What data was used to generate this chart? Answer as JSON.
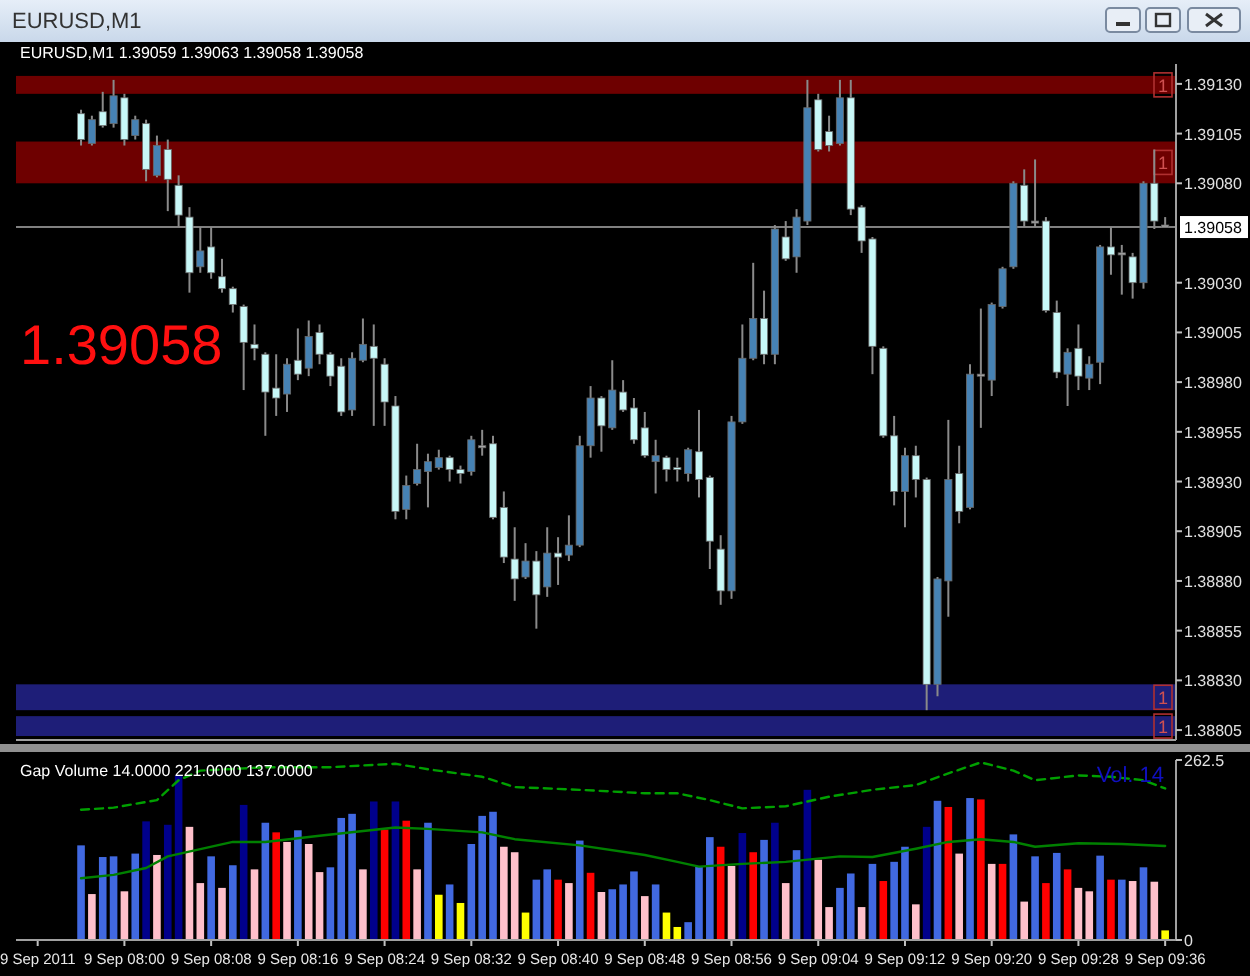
{
  "chart_data": [
    {
      "type": "candlestick",
      "title": "EURUSD,M1",
      "subtitle": "EURUSD,M1  1.39059 1.39063 1.39058 1.39058",
      "annotations": [
        "1.39058"
      ],
      "x": [
        "2011-09-09T07:56",
        "2011-09-09T07:57",
        "2011-09-09T07:58",
        "2011-09-09T07:59",
        "2011-09-09T08:00",
        "2011-09-09T08:01",
        "2011-09-09T08:02",
        "2011-09-09T08:03",
        "2011-09-09T08:04",
        "2011-09-09T08:05",
        "2011-09-09T08:06",
        "2011-09-09T08:07",
        "2011-09-09T08:08",
        "2011-09-09T08:09",
        "2011-09-09T08:10",
        "2011-09-09T08:11",
        "2011-09-09T08:12",
        "2011-09-09T08:13",
        "2011-09-09T08:14",
        "2011-09-09T08:15",
        "2011-09-09T08:16",
        "2011-09-09T08:17",
        "2011-09-09T08:18",
        "2011-09-09T08:19",
        "2011-09-09T08:20",
        "2011-09-09T08:21",
        "2011-09-09T08:22",
        "2011-09-09T08:23",
        "2011-09-09T08:24",
        "2011-09-09T08:25",
        "2011-09-09T08:26",
        "2011-09-09T08:27",
        "2011-09-09T08:28",
        "2011-09-09T08:29",
        "2011-09-09T08:30",
        "2011-09-09T08:31",
        "2011-09-09T08:32",
        "2011-09-09T08:33",
        "2011-09-09T08:34",
        "2011-09-09T08:35",
        "2011-09-09T08:36",
        "2011-09-09T08:37",
        "2011-09-09T08:38",
        "2011-09-09T08:39",
        "2011-09-09T08:40",
        "2011-09-09T08:41",
        "2011-09-09T08:42",
        "2011-09-09T08:43",
        "2011-09-09T08:44",
        "2011-09-09T08:45",
        "2011-09-09T08:46",
        "2011-09-09T08:47",
        "2011-09-09T08:48",
        "2011-09-09T08:49",
        "2011-09-09T08:50",
        "2011-09-09T08:51",
        "2011-09-09T08:52",
        "2011-09-09T08:53",
        "2011-09-09T08:54",
        "2011-09-09T08:55",
        "2011-09-09T08:56",
        "2011-09-09T08:57",
        "2011-09-09T08:58",
        "2011-09-09T08:59",
        "2011-09-09T09:00",
        "2011-09-09T09:01",
        "2011-09-09T09:02",
        "2011-09-09T09:03",
        "2011-09-09T09:04",
        "2011-09-09T09:05",
        "2011-09-09T09:06",
        "2011-09-09T09:07",
        "2011-09-09T09:08",
        "2011-09-09T09:09",
        "2011-09-09T09:10",
        "2011-09-09T09:11",
        "2011-09-09T09:12",
        "2011-09-09T09:13",
        "2011-09-09T09:14",
        "2011-09-09T09:15",
        "2011-09-09T09:16",
        "2011-09-09T09:17",
        "2011-09-09T09:18",
        "2011-09-09T09:19",
        "2011-09-09T09:20",
        "2011-09-09T09:21",
        "2011-09-09T09:22",
        "2011-09-09T09:23",
        "2011-09-09T09:24",
        "2011-09-09T09:25",
        "2011-09-09T09:26",
        "2011-09-09T09:27",
        "2011-09-09T09:28",
        "2011-09-09T09:29",
        "2011-09-09T09:30",
        "2011-09-09T09:31",
        "2011-09-09T09:32",
        "2011-09-09T09:33",
        "2011-09-09T09:34",
        "2011-09-09T09:35",
        "2011-09-09T09:36"
      ],
      "ohlc": [
        [
          1.39115,
          1.39117,
          1.39099,
          1.39102
        ],
        [
          1.391,
          1.39114,
          1.39099,
          1.39112
        ],
        [
          1.39116,
          1.39126,
          1.39108,
          1.39109
        ],
        [
          1.3911,
          1.39132,
          1.39108,
          1.39124
        ],
        [
          1.39123,
          1.39125,
          1.39099,
          1.39102
        ],
        [
          1.39104,
          1.39114,
          1.39102,
          1.39112
        ],
        [
          1.3911,
          1.39112,
          1.39081,
          1.39087
        ],
        [
          1.39084,
          1.39104,
          1.39083,
          1.39099
        ],
        [
          1.39097,
          1.39102,
          1.39066,
          1.39082
        ],
        [
          1.39079,
          1.39084,
          1.39058,
          1.39064
        ],
        [
          1.39063,
          1.39068,
          1.39025,
          1.39035
        ],
        [
          1.39038,
          1.39058,
          1.39035,
          1.39046
        ],
        [
          1.39048,
          1.39058,
          1.39032,
          1.39035
        ],
        [
          1.39033,
          1.39042,
          1.39025,
          1.39027
        ],
        [
          1.39027,
          1.39028,
          1.39015,
          1.39019
        ],
        [
          1.39018,
          1.39019,
          1.38976,
          1.39
        ],
        [
          1.38999,
          1.39009,
          1.38991,
          1.38997
        ],
        [
          1.38994,
          1.38995,
          1.38953,
          1.38975
        ],
        [
          1.38977,
          1.38994,
          1.38963,
          1.38972
        ],
        [
          1.38974,
          1.38992,
          1.38965,
          1.38989
        ],
        [
          1.38991,
          1.39007,
          1.38981,
          1.38984
        ],
        [
          1.38987,
          1.39011,
          1.38983,
          1.39003
        ],
        [
          1.39005,
          1.39009,
          1.38989,
          1.38994
        ],
        [
          1.38994,
          1.38995,
          1.38978,
          1.38983
        ],
        [
          1.38988,
          1.38992,
          1.38963,
          1.38965
        ],
        [
          1.38966,
          1.38995,
          1.38963,
          1.38992
        ],
        [
          1.38991,
          1.39012,
          1.3899,
          1.38999
        ],
        [
          1.38998,
          1.39009,
          1.38958,
          1.38992
        ],
        [
          1.38989,
          1.38992,
          1.38958,
          1.3897
        ],
        [
          1.38968,
          1.38973,
          1.38911,
          1.38915
        ],
        [
          1.38916,
          1.38933,
          1.38911,
          1.38928
        ],
        [
          1.38929,
          1.38949,
          1.38928,
          1.38936
        ],
        [
          1.38935,
          1.38944,
          1.38917,
          1.3894
        ],
        [
          1.38937,
          1.38946,
          1.38936,
          1.38942
        ],
        [
          1.38942,
          1.38943,
          1.3893,
          1.38936
        ],
        [
          1.38936,
          1.38938,
          1.38929,
          1.38934
        ],
        [
          1.38935,
          1.38953,
          1.38933,
          1.38951
        ],
        [
          1.38948,
          1.38956,
          1.38943,
          1.38948
        ],
        [
          1.38949,
          1.38953,
          1.38911,
          1.38912
        ],
        [
          1.38917,
          1.38925,
          1.38889,
          1.38892
        ],
        [
          1.38891,
          1.38907,
          1.3887,
          1.38881
        ],
        [
          1.38882,
          1.38899,
          1.38881,
          1.3889
        ],
        [
          1.3889,
          1.38895,
          1.38856,
          1.38873
        ],
        [
          1.38877,
          1.38907,
          1.38872,
          1.38894
        ],
        [
          1.38894,
          1.38902,
          1.38878,
          1.38892
        ],
        [
          1.38893,
          1.38913,
          1.3889,
          1.38898
        ],
        [
          1.38898,
          1.38953,
          1.38897,
          1.38948
        ],
        [
          1.38948,
          1.38978,
          1.38942,
          1.38972
        ],
        [
          1.38972,
          1.38973,
          1.38945,
          1.38958
        ],
        [
          1.38957,
          1.38991,
          1.38956,
          1.38976
        ],
        [
          1.38975,
          1.38981,
          1.38965,
          1.38966
        ],
        [
          1.38967,
          1.38972,
          1.38949,
          1.38951
        ],
        [
          1.38957,
          1.38965,
          1.38942,
          1.38943
        ],
        [
          1.3894,
          1.38951,
          1.38924,
          1.38943
        ],
        [
          1.38942,
          1.38943,
          1.3893,
          1.38936
        ],
        [
          1.38937,
          1.38942,
          1.3893,
          1.38936
        ],
        [
          1.38934,
          1.38947,
          1.3893,
          1.38946
        ],
        [
          1.38945,
          1.38966,
          1.38922,
          1.38931
        ],
        [
          1.38932,
          1.38933,
          1.38886,
          1.389
        ],
        [
          1.38896,
          1.38903,
          1.38868,
          1.38875
        ],
        [
          1.38875,
          1.38963,
          1.38871,
          1.3896
        ],
        [
          1.3896,
          1.39009,
          1.38959,
          1.38992
        ],
        [
          1.38992,
          1.3904,
          1.38991,
          1.39012
        ],
        [
          1.39012,
          1.39026,
          1.38989,
          1.38994
        ],
        [
          1.38994,
          1.39059,
          1.38989,
          1.39057
        ],
        [
          1.39053,
          1.39061,
          1.39041,
          1.39042
        ],
        [
          1.39043,
          1.39067,
          1.39035,
          1.39063
        ],
        [
          1.39061,
          1.39132,
          1.39059,
          1.39118
        ],
        [
          1.39122,
          1.39125,
          1.39096,
          1.39097
        ],
        [
          1.39106,
          1.39114,
          1.39096,
          1.39099
        ],
        [
          1.391,
          1.39132,
          1.39099,
          1.39123
        ],
        [
          1.39123,
          1.39132,
          1.39064,
          1.39067
        ],
        [
          1.39068,
          1.39069,
          1.39045,
          1.39051
        ],
        [
          1.39052,
          1.39053,
          1.38984,
          1.38998
        ],
        [
          1.38997,
          1.38998,
          1.38952,
          1.38953
        ],
        [
          1.38953,
          1.38963,
          1.38918,
          1.38925
        ],
        [
          1.38925,
          1.38947,
          1.38907,
          1.38943
        ],
        [
          1.38943,
          1.38948,
          1.38922,
          1.38931
        ],
        [
          1.38931,
          1.38932,
          1.38815,
          1.38828
        ],
        [
          1.38828,
          1.38882,
          1.38822,
          1.38881
        ],
        [
          1.3888,
          1.38961,
          1.38862,
          1.38931
        ],
        [
          1.38934,
          1.38948,
          1.38909,
          1.38915
        ],
        [
          1.38917,
          1.38989,
          1.38916,
          1.38984
        ],
        [
          1.38983,
          1.39017,
          1.38957,
          1.38984
        ],
        [
          1.38981,
          1.3902,
          1.38973,
          1.39019
        ],
        [
          1.39018,
          1.39038,
          1.39017,
          1.39037
        ],
        [
          1.39038,
          1.39081,
          1.39037,
          1.3908
        ],
        [
          1.39079,
          1.39087,
          1.39058,
          1.39061
        ],
        [
          1.3906,
          1.39092,
          1.39058,
          1.39061
        ],
        [
          1.39061,
          1.39063,
          1.39015,
          1.39016
        ],
        [
          1.39015,
          1.39021,
          1.38982,
          1.38985
        ],
        [
          1.38984,
          1.38997,
          1.38968,
          1.38995
        ],
        [
          1.38997,
          1.39009,
          1.38976,
          1.38983
        ],
        [
          1.38982,
          1.38993,
          1.38976,
          1.38989
        ],
        [
          1.3899,
          1.39049,
          1.38979,
          1.39048
        ],
        [
          1.39048,
          1.39058,
          1.39034,
          1.39044
        ],
        [
          1.39045,
          1.39049,
          1.39024,
          1.39045
        ],
        [
          1.39043,
          1.39045,
          1.39022,
          1.3903
        ],
        [
          1.3903,
          1.39081,
          1.39027,
          1.3908
        ],
        [
          1.3908,
          1.39097,
          1.39057,
          1.39061
        ],
        [
          1.39059,
          1.39063,
          1.39058,
          1.39058
        ]
      ],
      "colors": [
        "#c8f8f8",
        "#4682b4",
        "#c8f8f8",
        "#4682b4",
        "#c8f8f8",
        "#4682b4",
        "#c8f8f8",
        "#4682b4",
        "#c8f8f8",
        "#c8f8f8",
        "#c8f8f8",
        "#4682b4",
        "#c8f8f8",
        "#c8f8f8",
        "#c8f8f8",
        "#c8f8f8",
        "#c8f8f8",
        "#c8f8f8",
        "#c8f8f8",
        "#4682b4",
        "#c8f8f8",
        "#4682b4",
        "#c8f8f8",
        "#c8f8f8",
        "#c8f8f8",
        "#4682b4",
        "#4682b4",
        "#c8f8f8",
        "#c8f8f8",
        "#c8f8f8",
        "#4682b4",
        "#4682b4",
        "#4682b4",
        "#4682b4",
        "#c8f8f8",
        "#c8f8f8",
        "#4682b4",
        "#b0b0b0",
        "#c8f8f8",
        "#c8f8f8",
        "#c8f8f8",
        "#4682b4",
        "#c8f8f8",
        "#4682b4",
        "#c8f8f8",
        "#4682b4",
        "#4682b4",
        "#4682b4",
        "#c8f8f8",
        "#4682b4",
        "#c8f8f8",
        "#c8f8f8",
        "#c8f8f8",
        "#4682b4",
        "#c8f8f8",
        "#c8f8f8",
        "#4682b4",
        "#c8f8f8",
        "#c8f8f8",
        "#c8f8f8",
        "#4682b4",
        "#4682b4",
        "#4682b4",
        "#c8f8f8",
        "#4682b4",
        "#c8f8f8",
        "#4682b4",
        "#4682b4",
        "#c8f8f8",
        "#c8f8f8",
        "#4682b4",
        "#c8f8f8",
        "#c8f8f8",
        "#c8f8f8",
        "#c8f8f8",
        "#c8f8f8",
        "#4682b4",
        "#c8f8f8",
        "#c8f8f8",
        "#4682b4",
        "#4682b4",
        "#c8f8f8",
        "#4682b4",
        "#b0b0b0",
        "#4682b4",
        "#4682b4",
        "#4682b4",
        "#c8f8f8",
        "#b0b0b0",
        "#c8f8f8",
        "#c8f8f8",
        "#4682b4",
        "#c8f8f8",
        "#4682b4",
        "#4682b4",
        "#c8f8f8",
        "#b0b0b0",
        "#c8f8f8",
        "#4682b4",
        "#c8f8f8",
        "#b0b0b0"
      ],
      "xlim": [
        "2011-09-09T07:50",
        "2011-09-09T09:37"
      ],
      "ylim": [
        1.388,
        1.3914
      ],
      "yticks": [
        {
          "value": 1.3913,
          "label": "1.39130"
        },
        1.39105,
        {
          "value": 1.3908,
          "label": "1.39080"
        },
        {
          "value": 1.3903,
          "label": "1.39030"
        },
        1.39005,
        {
          "value": 1.3898,
          "label": "1.38980"
        },
        1.38955,
        {
          "value": 1.3893,
          "label": "1.38930"
        },
        1.38905,
        {
          "value": 1.3888,
          "label": "1.38880"
        },
        1.38855,
        {
          "value": 1.3883,
          "label": "1.38830"
        },
        1.38805
      ],
      "tick_labels": "y",
      "bands": [
        {
          "axis": "y",
          "from": 1.39125,
          "to": 1.39134,
          "color": "#6e0000",
          "label": "1"
        },
        {
          "axis": "y",
          "from": 1.3908,
          "to": 1.39101,
          "color": "#6e0000",
          "label": "1"
        },
        {
          "axis": "y",
          "from": 1.38815,
          "to": 1.38828,
          "color": "#1e1e78",
          "label": "1"
        },
        {
          "axis": "y",
          "from": 1.38802,
          "to": 1.38812,
          "color": "#1e1e78",
          "label": "1"
        }
      ],
      "ref_lines": [
        {
          "axis": "y",
          "value": 1.39058,
          "label": "1.39058",
          "color": "#808080"
        }
      ]
    },
    {
      "type": "bar",
      "title": "Gap Volume 14.0000 221.0000 137.0000",
      "annotations": [
        "Vol.  14"
      ],
      "x": [
        "2011-09-09T07:56",
        "2011-09-09T07:57",
        "2011-09-09T07:58",
        "2011-09-09T07:59",
        "2011-09-09T08:00",
        "2011-09-09T08:01",
        "2011-09-09T08:02",
        "2011-09-09T08:03",
        "2011-09-09T08:04",
        "2011-09-09T08:05",
        "2011-09-09T08:06",
        "2011-09-09T08:07",
        "2011-09-09T08:08",
        "2011-09-09T08:09",
        "2011-09-09T08:10",
        "2011-09-09T08:11",
        "2011-09-09T08:12",
        "2011-09-09T08:13",
        "2011-09-09T08:14",
        "2011-09-09T08:15",
        "2011-09-09T08:16",
        "2011-09-09T08:17",
        "2011-09-09T08:18",
        "2011-09-09T08:19",
        "2011-09-09T08:20",
        "2011-09-09T08:21",
        "2011-09-09T08:22",
        "2011-09-09T08:23",
        "2011-09-09T08:24",
        "2011-09-09T08:25",
        "2011-09-09T08:26",
        "2011-09-09T08:27",
        "2011-09-09T08:28",
        "2011-09-09T08:29",
        "2011-09-09T08:30",
        "2011-09-09T08:31",
        "2011-09-09T08:32",
        "2011-09-09T08:33",
        "2011-09-09T08:34",
        "2011-09-09T08:35",
        "2011-09-09T08:36",
        "2011-09-09T08:37",
        "2011-09-09T08:38",
        "2011-09-09T08:39",
        "2011-09-09T08:40",
        "2011-09-09T08:41",
        "2011-09-09T08:42",
        "2011-09-09T08:43",
        "2011-09-09T08:44",
        "2011-09-09T08:45",
        "2011-09-09T08:46",
        "2011-09-09T08:47",
        "2011-09-09T08:48",
        "2011-09-09T08:49",
        "2011-09-09T08:50",
        "2011-09-09T08:51",
        "2011-09-09T08:52",
        "2011-09-09T08:53",
        "2011-09-09T08:54",
        "2011-09-09T08:55",
        "2011-09-09T08:56",
        "2011-09-09T08:57",
        "2011-09-09T08:58",
        "2011-09-09T08:59",
        "2011-09-09T09:00",
        "2011-09-09T09:01",
        "2011-09-09T09:02",
        "2011-09-09T09:03",
        "2011-09-09T09:04",
        "2011-09-09T09:05",
        "2011-09-09T09:06",
        "2011-09-09T09:07",
        "2011-09-09T09:08",
        "2011-09-09T09:09",
        "2011-09-09T09:10",
        "2011-09-09T09:11",
        "2011-09-09T09:12",
        "2011-09-09T09:13",
        "2011-09-09T09:14",
        "2011-09-09T09:15",
        "2011-09-09T09:16",
        "2011-09-09T09:17",
        "2011-09-09T09:18",
        "2011-09-09T09:19",
        "2011-09-09T09:20",
        "2011-09-09T09:21",
        "2011-09-09T09:22",
        "2011-09-09T09:23",
        "2011-09-09T09:24",
        "2011-09-09T09:25",
        "2011-09-09T09:26",
        "2011-09-09T09:27",
        "2011-09-09T09:28",
        "2011-09-09T09:29",
        "2011-09-09T09:30",
        "2011-09-09T09:31",
        "2011-09-09T09:32",
        "2011-09-09T09:33",
        "2011-09-09T09:34",
        "2011-09-09T09:35",
        "2011-09-09T09:36"
      ],
      "series": [
        {
          "values": [
            138,
            67,
            121,
            122,
            71,
            126,
            173,
            124,
            168,
            240,
            165,
            83,
            122,
            76,
            109,
            197,
            103,
            171,
            157,
            143,
            160,
            140,
            99,
            106,
            178,
            184,
            103,
            202,
            161,
            202,
            174,
            103,
            171,
            66,
            81,
            54,
            140,
            181,
            187,
            136,
            128,
            40,
            88,
            103,
            88,
            83,
            145,
            98,
            70,
            74,
            81,
            100,
            64,
            81,
            40,
            19,
            26,
            107,
            150,
            136,
            108,
            156,
            128,
            146,
            171,
            83,
            131,
            219,
            117,
            48,
            76,
            97,
            48,
            111,
            86,
            114,
            136,
            52,
            165,
            203,
            194,
            126,
            207,
            205,
            111,
            111,
            154,
            56,
            122,
            83,
            127,
            103,
            76,
            71,
            123,
            88,
            88,
            86,
            106,
            85,
            14
          ],
          "colors": [
            "#4169e1",
            "#ffc0cb",
            "#4169e1",
            "#4169e1",
            "#ffc0cb",
            "#4169e1",
            "#00008b",
            "#ffc0cb",
            "#00008b",
            "#00008b",
            "#ffc0cb",
            "#ffc0cb",
            "#4169e1",
            "#ffc0cb",
            "#4169e1",
            "#00008b",
            "#ffc0cb",
            "#4169e1",
            "#ff0000",
            "#ffc0cb",
            "#4169e1",
            "#ffc0cb",
            "#ffc0cb",
            "#4169e1",
            "#4169e1",
            "#4169e1",
            "#ffc0cb",
            "#00008b",
            "#ff0000",
            "#00008b",
            "#ff0000",
            "#ffc0cb",
            "#4169e1",
            "#ffff00",
            "#4169e1",
            "#ffff00",
            "#4169e1",
            "#4169e1",
            "#4169e1",
            "#ffc0cb",
            "#ffc0cb",
            "#ffff00",
            "#4169e1",
            "#4169e1",
            "#ff0000",
            "#ffc0cb",
            "#4169e1",
            "#ff0000",
            "#ffc0cb",
            "#4169e1",
            "#4169e1",
            "#4169e1",
            "#ffc0cb",
            "#4169e1",
            "#ffff00",
            "#ffff00",
            "#4169e1",
            "#4169e1",
            "#4169e1",
            "#ff0000",
            "#ffc0cb",
            "#00008b",
            "#ff0000",
            "#4169e1",
            "#00008b",
            "#ffc0cb",
            "#4169e1",
            "#00008b",
            "#ffc0cb",
            "#ffc0cb",
            "#4169e1",
            "#4169e1",
            "#ffc0cb",
            "#4169e1",
            "#ff0000",
            "#4169e1",
            "#4169e1",
            "#ffc0cb",
            "#00008b",
            "#4169e1",
            "#ff0000",
            "#ffc0cb",
            "#4169e1",
            "#ff0000",
            "#ffc0cb",
            "#ff0000",
            "#4169e1",
            "#ffc0cb",
            "#4169e1",
            "#ff0000",
            "#4169e1",
            "#ff0000",
            "#ffc0cb",
            "#ffc0cb",
            "#4169e1",
            "#ff0000",
            "#4169e1",
            "#ffc0cb",
            "#4169e1",
            "#ffc0cb",
            "#ffff00"
          ]
        },
        {
          "type": "line",
          "color": "#00a000",
          "line_style": "dashed",
          "x": [
            "2011-09-09T07:56",
            "2011-09-09T07:59",
            "2011-09-09T08:03",
            "2011-09-09T08:05",
            "2011-09-09T08:07",
            "2011-09-09T08:13",
            "2011-09-09T08:19",
            "2011-09-09T08:25",
            "2011-09-09T08:28",
            "2011-09-09T08:33",
            "2011-09-09T08:36",
            "2011-09-09T08:42",
            "2011-09-09T08:48",
            "2011-09-09T08:51",
            "2011-09-09T08:54",
            "2011-09-09T08:57",
            "2011-09-09T09:01",
            "2011-09-09T09:05",
            "2011-09-09T09:09",
            "2011-09-09T09:13",
            "2011-09-09T09:16",
            "2011-09-09T09:19",
            "2011-09-09T09:22",
            "2011-09-09T09:24",
            "2011-09-09T09:28",
            "2011-09-09T09:31",
            "2011-09-09T09:34",
            "2011-09-09T09:36"
          ],
          "values": [
            190,
            193,
            204,
            233,
            247,
            252,
            252,
            257,
            249,
            238,
            223,
            219,
            214,
            214,
            204,
            192,
            195,
            209,
            219,
            226,
            243,
            259,
            247,
            233,
            240,
            238,
            233,
            221
          ]
        },
        {
          "type": "line",
          "color": "#008000",
          "x": [
            "2011-09-09T07:56",
            "2011-09-09T07:59",
            "2011-09-09T08:02",
            "2011-09-09T08:04",
            "2011-09-09T08:10",
            "2011-09-09T08:13",
            "2011-09-09T08:18",
            "2011-09-09T08:25",
            "2011-09-09T08:28",
            "2011-09-09T08:33",
            "2011-09-09T08:36",
            "2011-09-09T08:42",
            "2011-09-09T08:48",
            "2011-09-09T08:51",
            "2011-09-09T08:53",
            "2011-09-09T08:57",
            "2011-09-09T09:01",
            "2011-09-09T09:06",
            "2011-09-09T09:09",
            "2011-09-09T09:13",
            "2011-09-09T09:16",
            "2011-09-09T09:19",
            "2011-09-09T09:22",
            "2011-09-09T09:24",
            "2011-09-09T09:28",
            "2011-09-09T09:32",
            "2011-09-09T09:36"
          ],
          "values": [
            90,
            95,
            105,
            122,
            143,
            143,
            152,
            164,
            162,
            157,
            147,
            138,
            124,
            114,
            107,
            111,
            114,
            122,
            121,
            133,
            143,
            147,
            143,
            136,
            141,
            140,
            137
          ]
        }
      ],
      "xlim": [
        "2011-09-09T07:50",
        "2011-09-09T09:37"
      ],
      "ylim": [
        0,
        262.5
      ],
      "xticks": [
        {
          "value": "2011-09-09T07:52",
          "label": "9 Sep 2011"
        },
        {
          "value": "2011-09-09T08:00",
          "label": "9 Sep 08:00"
        },
        {
          "value": "2011-09-09T08:08",
          "label": "9 Sep 08:08"
        },
        {
          "value": "2011-09-09T08:16",
          "label": "9 Sep 08:16"
        },
        {
          "value": "2011-09-09T08:24",
          "label": "9 Sep 08:24"
        },
        {
          "value": "2011-09-09T08:32",
          "label": "9 Sep 08:32"
        },
        {
          "value": "2011-09-09T08:40",
          "label": "9 Sep 08:40"
        },
        {
          "value": "2011-09-09T08:48",
          "label": "9 Sep 08:48"
        },
        {
          "value": "2011-09-09T08:56",
          "label": "9 Sep 08:56"
        },
        {
          "value": "2011-09-09T09:04",
          "label": "9 Sep 09:04"
        },
        {
          "value": "2011-09-09T09:12",
          "label": "9 Sep 09:12"
        },
        {
          "value": "2011-09-09T09:20",
          "label": "9 Sep 09:20"
        },
        {
          "value": "2011-09-09T09:28",
          "label": "9 Sep 09:28"
        },
        {
          "value": "2011-09-09T09:36",
          "label": "9 Sep 09:36"
        }
      ],
      "yticks": [
        262.5,
        0
      ]
    }
  ]
}
